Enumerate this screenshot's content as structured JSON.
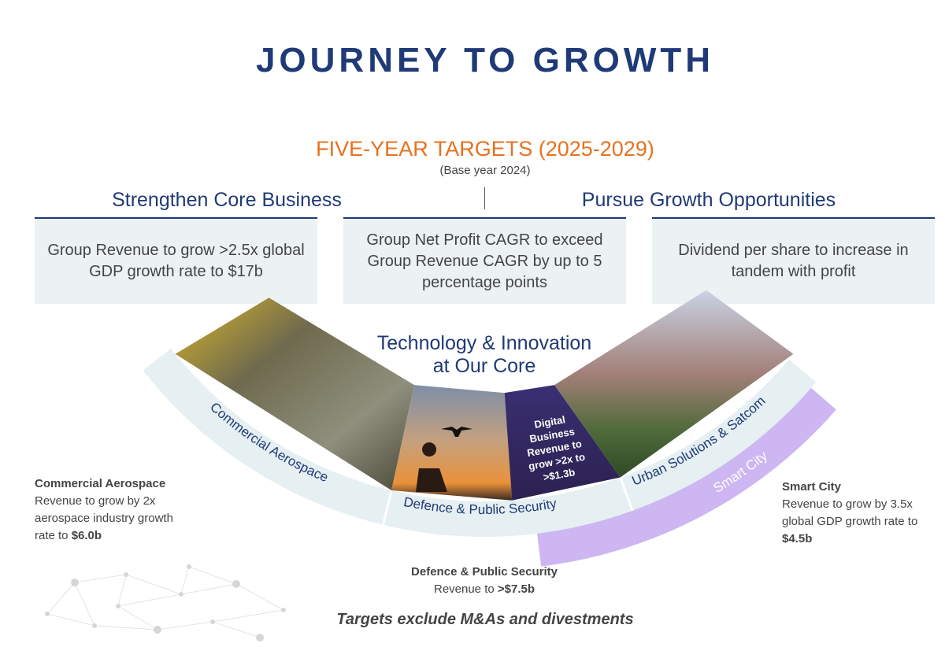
{
  "title": "JOURNEY TO GROWTH",
  "targets": {
    "heading": "FIVE-YEAR TARGETS (2025-2029)",
    "base_year": "(Base year 2024)"
  },
  "pillars": {
    "left": "Strengthen Core Business",
    "right": "Pursue Growth Opportunities"
  },
  "boxes": [
    "Group Revenue to grow >2.5x global GDP growth rate to $17b",
    "Group Net Profit CAGR to exceed Group Revenue CAGR by up to 5 percentage points",
    "Dividend per share to increase in tandem with profit"
  ],
  "core": {
    "line1": "Technology & Innovation",
    "line2": "at Our Core"
  },
  "arc": {
    "band_labels": [
      "Commercial Aerospace",
      "Defence & Public Security",
      "Urban Solutions & Satcom"
    ],
    "smart_city_band": "Smart City",
    "digital": [
      "Digital",
      "Business",
      "Revenue to",
      "grow >2x to",
      ">$1.3b"
    ]
  },
  "segments": {
    "aerospace": {
      "name": "Commercial Aerospace",
      "text": "Revenue to grow by 2x aerospace industry growth rate to ",
      "value": "$6.0b"
    },
    "defence": {
      "name": "Defence & Public Security",
      "text": "Revenue to ",
      "value": ">$7.5b"
    },
    "smart": {
      "name": "Smart City",
      "text": "Revenue to grow by 3.5x global GDP growth rate to ",
      "value": "$4.5b"
    }
  },
  "footer": "Targets exclude M&As and divestments",
  "colors": {
    "navy": "#1f3a77",
    "orange": "#e8711f",
    "box": "#ecf2f4",
    "purple": "#cdb6f2"
  }
}
